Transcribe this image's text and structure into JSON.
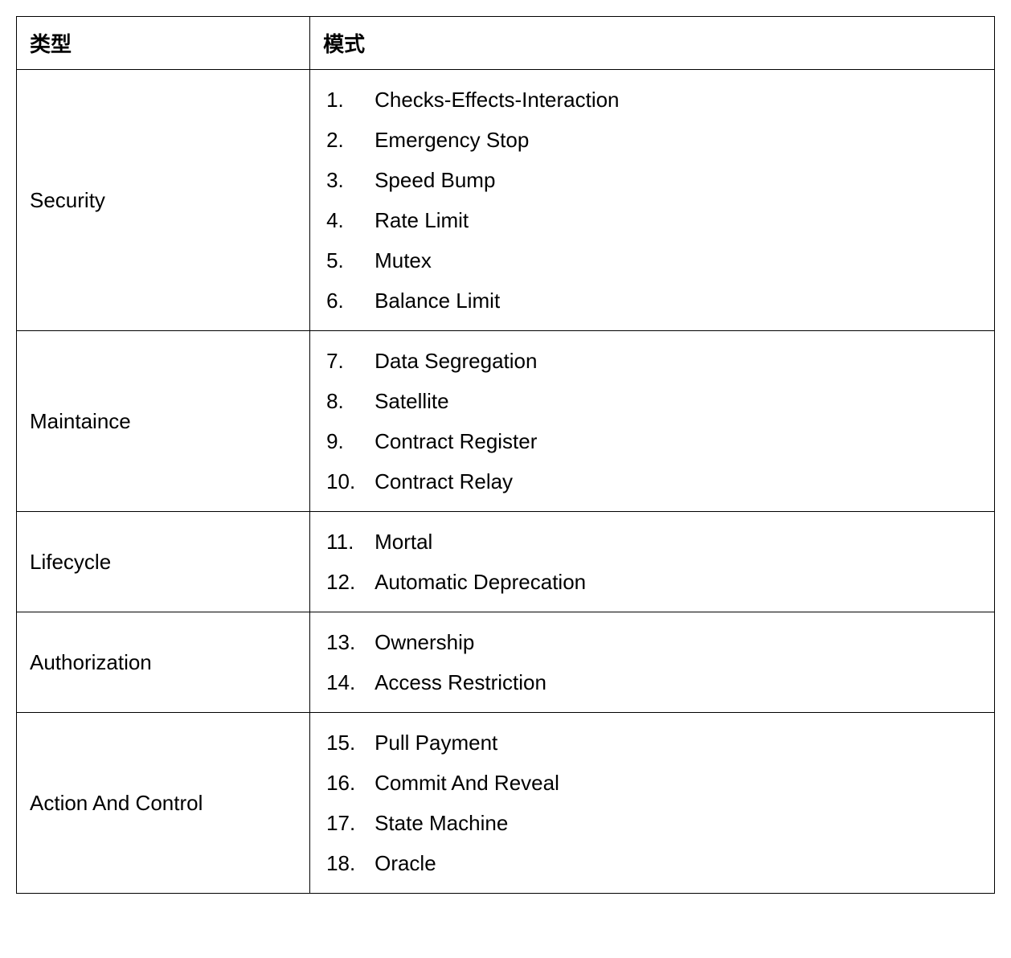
{
  "table": {
    "type": "table",
    "background_color": "#ffffff",
    "border_color": "#000000",
    "text_color": "#000000",
    "header_fontsize": 26,
    "body_fontsize": 26,
    "col_widths_pct": [
      30,
      70
    ],
    "columns": [
      "类型",
      "模式"
    ],
    "rows": [
      {
        "category": "Security",
        "patterns": [
          {
            "num": "1.",
            "label": "Checks-Effects-Interaction"
          },
          {
            "num": "2.",
            "label": "Emergency Stop"
          },
          {
            "num": "3.",
            "label": "Speed Bump"
          },
          {
            "num": "4.",
            "label": "Rate Limit"
          },
          {
            "num": "5.",
            "label": "Mutex"
          },
          {
            "num": "6.",
            "label": "Balance Limit"
          }
        ]
      },
      {
        "category": "Maintaince",
        "patterns": [
          {
            "num": "7.",
            "label": "Data Segregation"
          },
          {
            "num": "8.",
            "label": "Satellite"
          },
          {
            "num": "9.",
            "label": "Contract Register"
          },
          {
            "num": "10.",
            "label": "Contract Relay"
          }
        ]
      },
      {
        "category": "Lifecycle",
        "patterns": [
          {
            "num": "11.",
            "label": "Mortal"
          },
          {
            "num": "12.",
            "label": "Automatic Deprecation"
          }
        ]
      },
      {
        "category": "Authorization",
        "patterns": [
          {
            "num": "13.",
            "label": "Ownership"
          },
          {
            "num": "14.",
            "label": "Access Restriction"
          }
        ]
      },
      {
        "category": "Action And Control",
        "patterns": [
          {
            "num": "15.",
            "label": "Pull Payment"
          },
          {
            "num": "16.",
            "label": "Commit And Reveal"
          },
          {
            "num": "17.",
            "label": "State Machine"
          },
          {
            "num": "18.",
            "label": "Oracle"
          }
        ]
      }
    ]
  }
}
